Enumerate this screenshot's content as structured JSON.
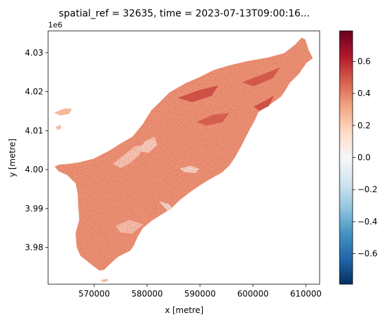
{
  "chart_data": {
    "type": "heatmap",
    "title": "spatial_ref = 32635, time = 2023-07-13T09:00:16...",
    "xlabel": "x [metre]",
    "ylabel": "y [metre]",
    "y_offset_label": "1e6",
    "x_ticks": [
      {
        "value": 570000,
        "label": "570000"
      },
      {
        "value": 580000,
        "label": "580000"
      },
      {
        "value": 590000,
        "label": "590000"
      },
      {
        "value": 600000,
        "label": "600000"
      },
      {
        "value": 610000,
        "label": "610000"
      }
    ],
    "y_ticks": [
      {
        "value": 3980000,
        "label": "3.98"
      },
      {
        "value": 3990000,
        "label": "3.99"
      },
      {
        "value": 4000000,
        "label": "4.00"
      },
      {
        "value": 4010000,
        "label": "4.01"
      },
      {
        "value": 4020000,
        "label": "4.02"
      },
      {
        "value": 4030000,
        "label": "4.03"
      }
    ],
    "xlim": [
      561300,
      612600
    ],
    "ylim": [
      3970600,
      4035600
    ],
    "colorbar": {
      "cmap": "RdBu_r",
      "vmin": -0.79,
      "vmax": 0.79,
      "ticks": [
        {
          "value": -0.6,
          "label": "−0.6"
        },
        {
          "value": -0.4,
          "label": "−0.4"
        },
        {
          "value": -0.2,
          "label": "−0.2"
        },
        {
          "value": 0.0,
          "label": "0.0"
        },
        {
          "value": 0.2,
          "label": "0.2"
        },
        {
          "value": 0.4,
          "label": "0.4"
        },
        {
          "value": 0.6,
          "label": "0.6"
        }
      ]
    },
    "grid": false,
    "island_outline": [
      [
        565300,
        4001500
      ],
      [
        567300,
        4001900
      ],
      [
        569900,
        4002800
      ],
      [
        572900,
        4004900
      ],
      [
        575100,
        4006800
      ],
      [
        577200,
        4008400
      ],
      [
        579200,
        4011700
      ],
      [
        580800,
        4015200
      ],
      [
        582600,
        4017600
      ],
      [
        584200,
        4019800
      ],
      [
        587300,
        4022200
      ],
      [
        589700,
        4023600
      ],
      [
        592700,
        4025600
      ],
      [
        595400,
        4026700
      ],
      [
        598800,
        4027800
      ],
      [
        602600,
        4028700
      ],
      [
        605900,
        4029900
      ],
      [
        607900,
        4032000
      ],
      [
        609200,
        4033900
      ],
      [
        609900,
        4033400
      ],
      [
        610500,
        4030800
      ],
      [
        611300,
        4028600
      ],
      [
        610100,
        4027400
      ],
      [
        608700,
        4024600
      ],
      [
        607000,
        4022300
      ],
      [
        606000,
        4020100
      ],
      [
        605300,
        4018700
      ],
      [
        603300,
        4016800
      ],
      [
        601000,
        4014700
      ],
      [
        600300,
        4012500
      ],
      [
        599300,
        4010100
      ],
      [
        598000,
        4006600
      ],
      [
        596800,
        4003600
      ],
      [
        595600,
        4001100
      ],
      [
        594100,
        3999200
      ],
      [
        592200,
        3997800
      ],
      [
        590500,
        3996400
      ],
      [
        588300,
        3994400
      ],
      [
        586300,
        3992300
      ],
      [
        584600,
        3990100
      ],
      [
        582400,
        3988200
      ],
      [
        580800,
        3986800
      ],
      [
        579200,
        3985000
      ],
      [
        578200,
        3982700
      ],
      [
        577500,
        3980500
      ],
      [
        576800,
        3979200
      ],
      [
        574500,
        3977600
      ],
      [
        573000,
        3975800
      ],
      [
        571900,
        3974300
      ],
      [
        571000,
        3974100
      ],
      [
        569700,
        3975400
      ],
      [
        568400,
        3976800
      ],
      [
        567400,
        3977900
      ],
      [
        566700,
        3980100
      ],
      [
        566500,
        3983700
      ],
      [
        567200,
        3987200
      ],
      [
        567000,
        3990200
      ],
      [
        566900,
        3993800
      ],
      [
        566500,
        3996500
      ],
      [
        564900,
        3998600
      ],
      [
        563300,
        3999600
      ],
      [
        562500,
        4000800
      ],
      [
        563400,
        4001300
      ]
    ],
    "islets": [
      [
        [
          571200,
          3971600
        ],
        [
          572400,
          3972000
        ],
        [
          572700,
          3971500
        ],
        [
          571800,
          3971100
        ]
      ],
      [
        [
          562400,
          4014600
        ],
        [
          564400,
          4015700
        ],
        [
          565800,
          4015600
        ],
        [
          565300,
          4014300
        ],
        [
          563600,
          4013900
        ]
      ],
      [
        [
          562700,
          4010900
        ],
        [
          563600,
          4011500
        ],
        [
          563800,
          4010600
        ],
        [
          563100,
          4010200
        ]
      ]
    ],
    "features": [
      {
        "value": 0.18,
        "points": [
          [
            573500,
            4001500
          ],
          [
            575300,
            4003400
          ],
          [
            577600,
            4005900
          ],
          [
            579100,
            4006300
          ],
          [
            578700,
            4004000
          ],
          [
            576900,
            4001700
          ],
          [
            575000,
            4000400
          ]
        ]
      },
      {
        "value": 0.15,
        "points": [
          [
            578100,
            4004800
          ],
          [
            579700,
            4007400
          ],
          [
            581400,
            4008400
          ],
          [
            581900,
            4006300
          ],
          [
            580300,
            4004300
          ]
        ]
      },
      {
        "value": 0.12,
        "points": [
          [
            586200,
            4000300
          ],
          [
            588200,
            4001000
          ],
          [
            589900,
            4000200
          ],
          [
            589100,
            3999100
          ],
          [
            587000,
            3999400
          ]
        ]
      },
      {
        "value": 0.08,
        "points": [
          [
            582200,
            3991900
          ],
          [
            583700,
            3989700
          ],
          [
            585000,
            3989400
          ],
          [
            584200,
            3991100
          ]
        ]
      },
      {
        "value": 0.5,
        "points": [
          [
            585800,
            4018400
          ],
          [
            589800,
            4020400
          ],
          [
            593500,
            4021600
          ],
          [
            592200,
            4018900
          ],
          [
            588500,
            4017300
          ]
        ]
      },
      {
        "value": 0.48,
        "points": [
          [
            598000,
            4022400
          ],
          [
            602200,
            4024600
          ],
          [
            605100,
            4026200
          ],
          [
            603800,
            4023500
          ],
          [
            600100,
            4021400
          ]
        ]
      },
      {
        "value": 0.5,
        "points": [
          [
            600100,
            4016200
          ],
          [
            602300,
            4017700
          ],
          [
            604000,
            4019000
          ],
          [
            603000,
            4016300
          ],
          [
            601200,
            4015100
          ]
        ]
      },
      {
        "value": 0.46,
        "points": [
          [
            589300,
            4012200
          ],
          [
            592500,
            4014100
          ],
          [
            595600,
            4014600
          ],
          [
            594200,
            4012100
          ],
          [
            591200,
            4011300
          ]
        ]
      },
      {
        "value": 0.2,
        "points": [
          [
            574100,
            3985600
          ],
          [
            576700,
            3987100
          ],
          [
            579300,
            3985900
          ],
          [
            577200,
            3983600
          ],
          [
            574900,
            3983900
          ]
        ]
      }
    ]
  }
}
